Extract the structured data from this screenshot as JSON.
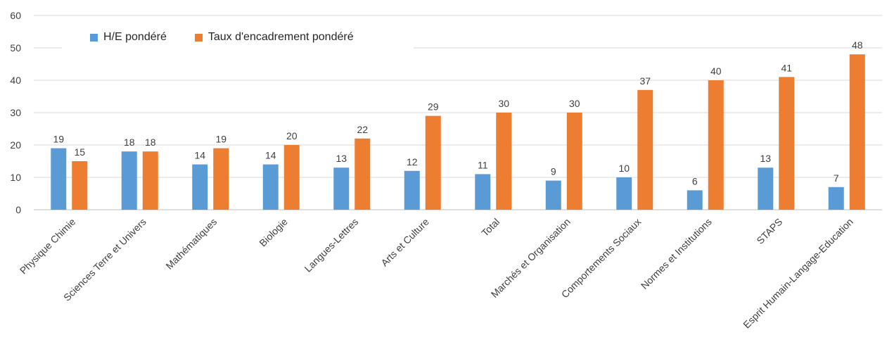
{
  "colors": {
    "series1": "#5b9bd5",
    "series2": "#ed7d31",
    "grid": "#d9d9d9"
  },
  "chart_data": {
    "type": "bar",
    "title": "",
    "xlabel": "",
    "ylabel": "",
    "ylim": [
      0,
      60
    ],
    "yticks": [
      "0",
      "10",
      "20",
      "30",
      "40",
      "50",
      "60"
    ],
    "grid": true,
    "legend_position": "top-left",
    "categories": [
      "Physique Chimie",
      "Sciences Terre et Univers",
      "Mathématiques",
      "Biologie",
      "Langues-Lettres",
      "Arts et Culture",
      "Total",
      "Marchés et Organisation",
      "Comportements Sociaux",
      "Normes et Institutions",
      "STAPS",
      "Esprit Humain-Langage-Education"
    ],
    "series": [
      {
        "name": "H/E pondéré",
        "values": [
          19,
          18,
          14,
          14,
          13,
          12,
          11,
          9,
          10,
          6,
          13,
          7
        ],
        "labels": [
          "19",
          "18",
          "14",
          "14",
          "13",
          "12",
          "11",
          "9",
          "10",
          "6",
          "13",
          "7"
        ]
      },
      {
        "name": "Taux d'encadrement pondéré",
        "values": [
          15,
          18,
          19,
          20,
          22,
          29,
          30,
          30,
          37,
          40,
          41,
          48
        ],
        "labels": [
          "15",
          "18",
          "19",
          "20",
          "22",
          "29",
          "30",
          "30",
          "37",
          "40",
          "41",
          "48"
        ]
      }
    ]
  }
}
